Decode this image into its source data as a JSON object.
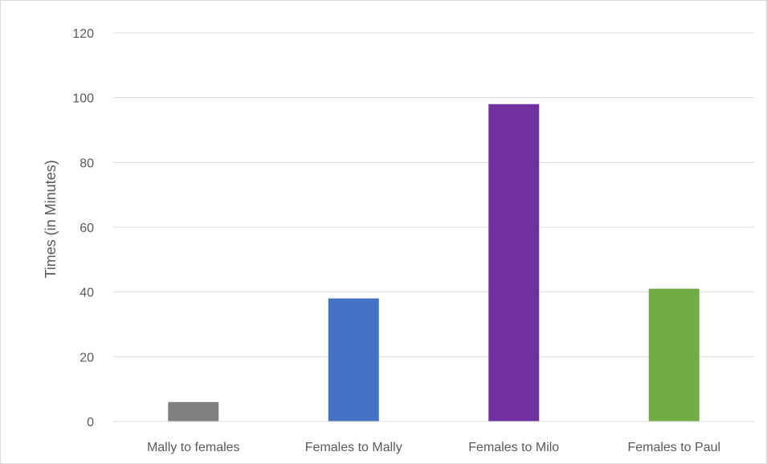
{
  "chart_data": {
    "type": "bar",
    "title": "",
    "xlabel": "",
    "ylabel": "Times (in Minutes)",
    "categories": [
      "Mally to females",
      "Females to Mally",
      "Females to Milo",
      "Females to Paul"
    ],
    "values": [
      6,
      38,
      98,
      41
    ],
    "colors": [
      "#808080",
      "#4472C4",
      "#7030A0",
      "#70AD47"
    ],
    "ylim": [
      0,
      120
    ],
    "yticks": [
      "0",
      "20",
      "40",
      "60",
      "80",
      "100",
      "120"
    ],
    "grid": true,
    "legend": "none"
  }
}
